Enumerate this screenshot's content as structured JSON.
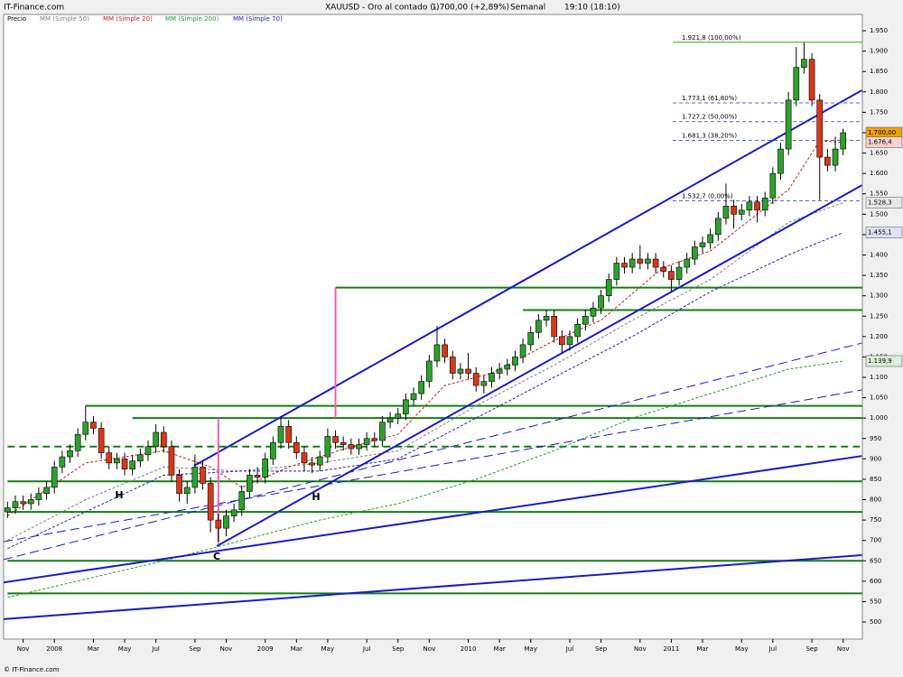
{
  "header": {
    "brand": "IT-Finance.com",
    "footer": "© IT-Finance.com"
  },
  "chart_data": {
    "type": "candlestick",
    "title": "XAUUSD - Oro al contado (-)",
    "price_info": "1.700,00 (+2,89%)",
    "period": "Semanal",
    "time": "19:10 (18:10)",
    "name": "Precio",
    "up_color": "#2ea02e",
    "down_color": "#d8381a",
    "categories": [
      null,
      null,
      "Nov",
      null,
      null,
      null,
      "2008",
      null,
      null,
      null,
      null,
      "Mar",
      null,
      null,
      null,
      "May",
      null,
      null,
      null,
      "Jul",
      null,
      null,
      null,
      null,
      "Sep",
      null,
      null,
      null,
      "Nov",
      null,
      null,
      null,
      null,
      "2009",
      null,
      null,
      null,
      "Mar",
      null,
      null,
      null,
      "May",
      null,
      null,
      null,
      null,
      "Jul",
      null,
      null,
      null,
      "Sep",
      null,
      null,
      null,
      "Nov",
      null,
      null,
      null,
      null,
      "2010",
      null,
      null,
      null,
      "Mar",
      null,
      null,
      null,
      "May",
      null,
      null,
      null,
      null,
      "Jul",
      null,
      null,
      null,
      "Sep",
      null,
      null,
      null,
      null,
      "Nov",
      null,
      null,
      null,
      "2011",
      null,
      null,
      null,
      "Mar",
      null,
      null,
      null,
      null,
      "May",
      null,
      null,
      null,
      "Jul",
      null,
      null,
      null,
      null,
      "Sep",
      null,
      null,
      null,
      "Nov"
    ],
    "open": [
      770,
      780,
      795,
      790,
      800,
      815,
      830,
      880,
      905,
      920,
      960,
      990,
      975,
      915,
      890,
      900,
      875,
      895,
      910,
      930,
      965,
      930,
      860,
      815,
      830,
      880,
      840,
      750,
      730,
      760,
      775,
      820,
      860,
      855,
      900,
      940,
      980,
      940,
      915,
      890,
      885,
      905,
      955,
      940,
      935,
      925,
      935,
      950,
      945,
      990,
      1000,
      1010,
      1045,
      1060,
      1090,
      1140,
      1180,
      1150,
      1110,
      1120,
      1110,
      1080,
      1090,
      1110,
      1120,
      1130,
      1150,
      1180,
      1210,
      1240,
      1250,
      1200,
      1180,
      1200,
      1230,
      1250,
      1270,
      1300,
      1340,
      1380,
      1370,
      1390,
      1380,
      1390,
      1370,
      1360,
      1340,
      1370,
      1390,
      1420,
      1430,
      1450,
      1490,
      1520,
      1500,
      1510,
      1530,
      1510,
      1540,
      1600,
      1660,
      1780,
      1860,
      1880,
      1780,
      1640,
      1620,
      1660
    ],
    "high": [
      795,
      810,
      810,
      815,
      830,
      845,
      895,
      920,
      935,
      975,
      1030,
      1005,
      990,
      930,
      915,
      915,
      910,
      925,
      945,
      985,
      980,
      945,
      875,
      845,
      910,
      895,
      855,
      765,
      775,
      790,
      835,
      875,
      880,
      915,
      955,
      1005,
      995,
      955,
      930,
      905,
      920,
      975,
      970,
      955,
      950,
      950,
      965,
      965,
      1005,
      1015,
      1025,
      1060,
      1075,
      1105,
      1155,
      1226,
      1195,
      1165,
      1135,
      1160,
      1125,
      1105,
      1125,
      1135,
      1145,
      1165,
      1195,
      1225,
      1255,
      1265,
      1265,
      1215,
      1215,
      1245,
      1265,
      1285,
      1315,
      1355,
      1395,
      1395,
      1405,
      1424,
      1405,
      1405,
      1385,
      1375,
      1385,
      1405,
      1435,
      1445,
      1465,
      1505,
      1575,
      1535,
      1525,
      1545,
      1545,
      1555,
      1615,
      1675,
      1800,
      1910,
      1921,
      1895,
      1795,
      1660,
      1690,
      1710
    ],
    "low": [
      755,
      765,
      775,
      775,
      785,
      800,
      815,
      865,
      890,
      905,
      945,
      960,
      900,
      875,
      875,
      860,
      860,
      880,
      895,
      915,
      915,
      845,
      795,
      790,
      815,
      825,
      720,
      697,
      710,
      745,
      760,
      805,
      840,
      840,
      885,
      925,
      925,
      900,
      870,
      865,
      870,
      890,
      925,
      920,
      910,
      910,
      920,
      930,
      930,
      975,
      985,
      995,
      1030,
      1045,
      1075,
      1125,
      1135,
      1095,
      1095,
      1095,
      1065,
      1060,
      1075,
      1095,
      1105,
      1115,
      1135,
      1165,
      1195,
      1225,
      1185,
      1160,
      1165,
      1185,
      1215,
      1235,
      1255,
      1285,
      1325,
      1355,
      1355,
      1365,
      1365,
      1355,
      1345,
      1310,
      1325,
      1355,
      1375,
      1405,
      1415,
      1435,
      1475,
      1465,
      1485,
      1495,
      1480,
      1495,
      1525,
      1585,
      1645,
      1765,
      1845,
      1765,
      1535,
      1605,
      1605,
      1645
    ],
    "close": [
      780,
      795,
      790,
      800,
      815,
      830,
      880,
      905,
      920,
      960,
      990,
      975,
      915,
      890,
      900,
      875,
      895,
      910,
      930,
      965,
      930,
      860,
      815,
      830,
      880,
      840,
      750,
      730,
      760,
      775,
      820,
      860,
      855,
      900,
      940,
      980,
      940,
      915,
      890,
      885,
      905,
      955,
      940,
      935,
      925,
      935,
      950,
      945,
      990,
      1000,
      1010,
      1045,
      1060,
      1090,
      1140,
      1180,
      1150,
      1110,
      1120,
      1110,
      1080,
      1090,
      1110,
      1120,
      1130,
      1150,
      1180,
      1210,
      1240,
      1250,
      1200,
      1180,
      1200,
      1230,
      1250,
      1270,
      1300,
      1340,
      1380,
      1370,
      1390,
      1380,
      1390,
      1370,
      1360,
      1340,
      1370,
      1390,
      1420,
      1430,
      1450,
      1490,
      1520,
      1500,
      1510,
      1530,
      1510,
      1540,
      1600,
      1660,
      1780,
      1860,
      1880,
      1780,
      1640,
      1620,
      1660,
      1700
    ],
    "moving_averages": [
      {
        "name": "MM (Simple 50)",
        "color": "#808080",
        "x": [
          0,
          10,
          20,
          30,
          40,
          50,
          60,
          70,
          80,
          90,
          100,
          107
        ],
        "values": [
          700,
          800,
          880,
          870,
          890,
          920,
          1030,
          1130,
          1240,
          1340,
          1480,
          1528.3
        ]
      },
      {
        "name": "MM (Simple 20)",
        "color": "#c02020",
        "x": [
          0,
          10,
          20,
          26,
          30,
          36,
          44,
          50,
          56,
          62,
          70,
          76,
          84,
          90,
          96,
          100,
          104,
          107
        ],
        "values": [
          760,
          890,
          920,
          880,
          830,
          880,
          930,
          960,
          1080,
          1110,
          1190,
          1240,
          1370,
          1410,
          1500,
          1560,
          1680,
          1676.4
        ]
      },
      {
        "name": "MM (Simple 200)",
        "color": "#20a020",
        "x": [
          0,
          20,
          30,
          40,
          50,
          60,
          70,
          80,
          90,
          100,
          107
        ],
        "values": [
          560,
          650,
          700,
          750,
          790,
          850,
          920,
          1000,
          1060,
          1120,
          1139.9
        ]
      },
      {
        "name": "MM (Simple 70)",
        "color": "#2020c0",
        "x": [
          0,
          10,
          20,
          30,
          40,
          50,
          60,
          70,
          80,
          90,
          100,
          107
        ],
        "values": [
          680,
          770,
          860,
          870,
          870,
          900,
          1000,
          1100,
          1200,
          1310,
          1400,
          1455.1
        ]
      }
    ],
    "tags": [
      {
        "value": 1700,
        "label": "1.700,00",
        "color": "#f0a000"
      },
      {
        "value": 1676.4,
        "label": "1.676,4",
        "color": "#f4d0d0"
      },
      {
        "value": 1528.3,
        "label": "1.528,3",
        "color": "#e8e8e8"
      },
      {
        "value": 1455.1,
        "label": "1.455,1",
        "color": "#e0e0f4"
      },
      {
        "value": 1139.9,
        "label": "1.139,9",
        "color": "#d8f0d8"
      }
    ],
    "fibonacci": [
      {
        "value": 1921.8,
        "label": "1.921,8 (100,00%)"
      },
      {
        "value": 1773.1,
        "label": "1.773,1 (61,80%)"
      },
      {
        "value": 1727.2,
        "label": "1.727,2 (50,00%)"
      },
      {
        "value": 1681.3,
        "label": "1.681,3 (38,20%)"
      },
      {
        "value": 1532.7,
        "label": "1.532,7 (0,00%)"
      }
    ],
    "levels": [
      {
        "value": 1320,
        "start": 42
      },
      {
        "value": 1265,
        "start": 66
      },
      {
        "value": 1030,
        "start": 10
      },
      {
        "value": 1000,
        "start": 16
      },
      {
        "value": 930,
        "start": 0,
        "dashed": true
      },
      {
        "value": 845,
        "start": 0
      },
      {
        "value": 770,
        "start": 0
      },
      {
        "value": 650,
        "start": 0
      },
      {
        "value": 570,
        "start": 0
      }
    ],
    "trendlines": [
      {
        "x": [
          23.9,
          109.4
        ],
        "y": [
          883,
          1804
        ],
        "width": 2
      },
      {
        "x": [
          26.8,
          109.4
        ],
        "y": [
          686,
          1571
        ],
        "width": 2
      },
      {
        "x": [
          -0.5,
          109.4
        ],
        "y": [
          597,
          907
        ],
        "width": 2
      },
      {
        "x": [
          -0.5,
          109.4
        ],
        "y": [
          507,
          664
        ],
        "width": 2
      },
      {
        "x": [
          -0.5,
          109.4
        ],
        "y": [
          653,
          1184
        ],
        "width": 1,
        "dashed": true
      },
      {
        "x": [
          -0.5,
          109.4
        ],
        "y": [
          697,
          1069
        ],
        "width": 1,
        "dashed": true
      }
    ],
    "markers": [
      {
        "x": 42,
        "y": [
          1000,
          1320
        ]
      },
      {
        "x": 27,
        "y": [
          690,
          1000
        ]
      }
    ],
    "annotations": [
      {
        "text": "H",
        "x": 14.3,
        "y": 810
      },
      {
        "text": "H",
        "x": 39.5,
        "y": 806
      },
      {
        "text": "C",
        "x": 26.8,
        "y": 660
      }
    ],
    "ylim": [
      458,
      1990
    ],
    "yticks": [
      500,
      550,
      600,
      650,
      700,
      750,
      800,
      850,
      900,
      950,
      {
        "value": 1000,
        "label": "1.000"
      },
      {
        "value": 1050,
        "label": "1.050"
      },
      {
        "value": 1100,
        "label": "1.100"
      },
      {
        "value": 1150,
        "label": "1.150"
      },
      {
        "value": 1200,
        "label": "1.200"
      },
      {
        "value": 1250,
        "label": "1.250"
      },
      {
        "value": 1300,
        "label": "1.300"
      },
      {
        "value": 1350,
        "label": "1.350"
      },
      {
        "value": 1400,
        "label": "1.400"
      },
      {
        "value": 1450,
        "label": "1.450"
      },
      {
        "value": 1500,
        "label": "1.500"
      },
      {
        "value": 1550,
        "label": "1.550"
      },
      {
        "value": 1600,
        "label": "1.600"
      },
      {
        "value": 1650,
        "label": "1.650"
      },
      {
        "value": 1700,
        "label": "1.700"
      },
      {
        "value": 1750,
        "label": "1.750"
      },
      {
        "value": 1800,
        "label": "1.800"
      },
      {
        "value": 1850,
        "label": "1.850"
      },
      {
        "value": 1900,
        "label": "1.900"
      },
      {
        "value": 1950,
        "label": "1.950"
      }
    ]
  }
}
